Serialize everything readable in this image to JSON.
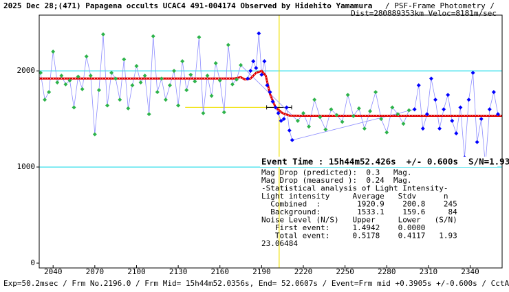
{
  "chart_data": {
    "type": "scatter",
    "title": "2025 Dec 28;(471) Papagena occults UCAC4 491-004174 Observed by Hidehito Yamamura",
    "subtitle": "/ PSF-Frame Photometry /",
    "subtitle2": "Dist=280889353km Veloc=8181m/sec",
    "footer": "Exp=50.2msec / Frm No.2196.0 / Frm Mid= 15h44m52.0356s, End= 52.0607s / Event=Frm mid +0.3905s +/-0.600s / CctAngle=87.0deg",
    "xlim": [
      2030,
      2363
    ],
    "ylim": [
      -50,
      2580
    ],
    "xticks": [
      2040,
      2070,
      2100,
      2130,
      2160,
      2190,
      2220,
      2250,
      2280,
      2310,
      2340
    ],
    "yticks": [
      0,
      1000,
      2000
    ],
    "grid_yvalues": [
      1000,
      2000
    ],
    "event_x": 2202.6,
    "event_level": 1620,
    "event_level_xstart": 2135,
    "event_error": [
      2193.6,
      2211.6
    ],
    "series": [
      {
        "name": "green",
        "color": "#2db34a",
        "x": [
          2031,
          2034,
          2037,
          2040,
          2043,
          2046,
          2049,
          2052,
          2055,
          2058,
          2061,
          2064,
          2067,
          2070,
          2073,
          2076,
          2079,
          2082,
          2085,
          2088,
          2091,
          2094,
          2097,
          2100,
          2103,
          2106,
          2109,
          2112,
          2115,
          2118,
          2121,
          2124,
          2127,
          2130,
          2133,
          2136,
          2139,
          2142,
          2145,
          2148,
          2151,
          2154,
          2157,
          2160,
          2163,
          2166,
          2169,
          2172,
          2175,
          2216,
          2220,
          2224,
          2228,
          2232,
          2236,
          2240,
          2244,
          2248,
          2252,
          2256,
          2260,
          2264,
          2268,
          2272,
          2276,
          2280,
          2284,
          2288,
          2292,
          2296
        ],
        "values": [
          1980,
          1700,
          1780,
          2200,
          1880,
          1950,
          1860,
          1900,
          1620,
          1940,
          1810,
          2150,
          1950,
          1340,
          1800,
          2380,
          1640,
          1980,
          1920,
          1700,
          2120,
          1610,
          1850,
          2050,
          1880,
          1950,
          1550,
          2360,
          1780,
          1920,
          1700,
          1850,
          2000,
          1640,
          2100,
          1800,
          1960,
          1890,
          2350,
          1560,
          1950,
          1740,
          2080,
          1900,
          1570,
          2270,
          1860,
          1910,
          2060,
          1480,
          1560,
          1420,
          1700,
          1520,
          1390,
          1600,
          1540,
          1470,
          1750,
          1530,
          1610,
          1400,
          1580,
          1780,
          1500,
          1360,
          1620,
          1550,
          1450,
          1590
        ]
      },
      {
        "name": "blue",
        "color": "#0000ff",
        "x": [
          2180,
          2182,
          2184,
          2186,
          2188,
          2190,
          2192,
          2194,
          2196,
          2198,
          2200,
          2202,
          2204,
          2206,
          2208,
          2210,
          2212,
          2300,
          2303,
          2306,
          2309,
          2312,
          2315,
          2318,
          2321,
          2324,
          2327,
          2330,
          2333,
          2336,
          2339,
          2342,
          2345,
          2348,
          2351,
          2354,
          2357,
          2360
        ],
        "values": [
          1920,
          2000,
          2100,
          2030,
          2390,
          1960,
          2100,
          1850,
          1780,
          1680,
          1620,
          1560,
          1480,
          1500,
          1620,
          1380,
          1280,
          1600,
          1850,
          1400,
          1550,
          1920,
          1700,
          1400,
          1600,
          1750,
          1480,
          1350,
          1620,
          1100,
          1700,
          1980,
          1260,
          1500,
          1020,
          1600,
          1780,
          1550
        ]
      }
    ],
    "model": {
      "color": "#e00000",
      "x": [
        2030,
        2170,
        2175,
        2178,
        2182,
        2186,
        2190,
        2193,
        2196,
        2200,
        2205,
        2210,
        2220,
        2363
      ],
      "values": [
        1920,
        1920,
        1935,
        1910,
        1920,
        1980,
        2000,
        1950,
        1760,
        1620,
        1560,
        1535,
        1533,
        1533
      ]
    },
    "stats_lines": [
      "Event Time : 15h44m52.426s  +/- 0.600s  S/N=1.93",
      "Mag Drop (predicted):  0.3   Mag.",
      "Mag Drop (measured ):  0.24  Mag.",
      "-Statistical analysis of Light Intensity-",
      "Light intensity     Average   Stdv      n",
      "  Combined  :        1920.9    200.8    245",
      "  Background:        1533.1    159.6     84",
      "Noise Level (N/S)   Upper     Lower   (S/N)",
      "   First event:     1.4942    0.0000",
      "   Total event:     0.5178    0.4117   1.93",
      "23.06484"
    ]
  }
}
